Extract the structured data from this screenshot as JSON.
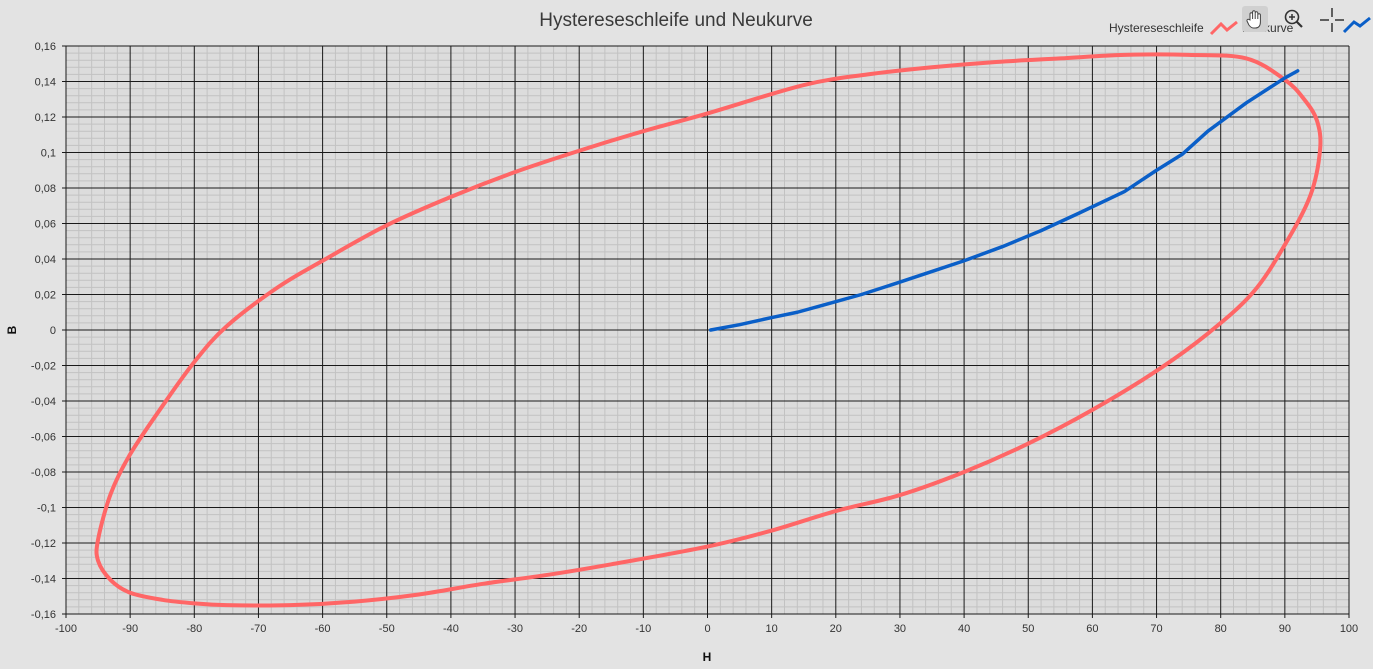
{
  "chart_data": {
    "type": "line",
    "title": "Hystereseschleife und Neukurve",
    "xlabel": "H",
    "ylabel": "B",
    "xlim": [
      -100,
      100
    ],
    "ylim": [
      -0.16,
      0.16
    ],
    "x_ticks": [
      "-100",
      "-90",
      "-80",
      "-70",
      "-60",
      "-50",
      "-40",
      "-30",
      "-20",
      "-10",
      "0",
      "10",
      "20",
      "30",
      "40",
      "50",
      "60",
      "70",
      "80",
      "90",
      "100"
    ],
    "y_ticks": [
      "0,16",
      "0,14",
      "0,12",
      "0,1",
      "0,08",
      "0,06",
      "0,04",
      "0,02",
      "0",
      "-0,02",
      "-0,04",
      "-0,06",
      "-0,08",
      "-0,1",
      "-0,12",
      "-0,14",
      "-0,16"
    ],
    "grid": true,
    "legend": "top-right",
    "series": [
      {
        "name": "Hystereseschleife",
        "color": "#ff6666",
        "x": [
          90,
          84,
          75,
          65,
          55,
          45,
          35,
          25,
          15,
          0,
          -10,
          -20,
          -30,
          -40,
          -50,
          -60,
          -67,
          -75,
          -80,
          -85,
          -90,
          -93,
          -95,
          -95,
          -93,
          -90,
          -85,
          -80,
          -75,
          -65,
          -55,
          -45,
          -35,
          -25,
          -15,
          0,
          10,
          20,
          30,
          40,
          50,
          60,
          70,
          78,
          85,
          90,
          94,
          95.5,
          95,
          93,
          90
        ],
        "y": [
          0.141,
          0.153,
          0.155,
          0.155,
          0.153,
          0.151,
          0.148,
          0.144,
          0.138,
          0.122,
          0.112,
          0.101,
          0.089,
          0.075,
          0.059,
          0.039,
          0.024,
          0.002,
          -0.018,
          -0.043,
          -0.07,
          -0.092,
          -0.118,
          -0.13,
          -0.141,
          -0.148,
          -0.152,
          -0.154,
          -0.155,
          -0.155,
          -0.153,
          -0.149,
          -0.143,
          -0.138,
          -0.132,
          -0.122,
          -0.113,
          -0.102,
          -0.093,
          -0.08,
          -0.064,
          -0.045,
          -0.023,
          -0.002,
          0.021,
          0.048,
          0.076,
          0.102,
          0.118,
          0.13,
          0.141
        ]
      },
      {
        "name": "Neukurve",
        "color": "#0a5fc8",
        "x": [
          0.5,
          5,
          10,
          14,
          18,
          24,
          30,
          35,
          40,
          46,
          52,
          58,
          65,
          70,
          74,
          78,
          84,
          90,
          92
        ],
        "y": [
          0.0,
          0.003,
          0.007,
          0.01,
          0.014,
          0.02,
          0.027,
          0.033,
          0.039,
          0.047,
          0.056,
          0.066,
          0.078,
          0.09,
          0.099,
          0.112,
          0.128,
          0.142,
          0.146
        ]
      }
    ]
  },
  "toolbar": {
    "icons": [
      "pan-hand-icon",
      "zoom-in-icon",
      "crosshair-icon"
    ]
  }
}
